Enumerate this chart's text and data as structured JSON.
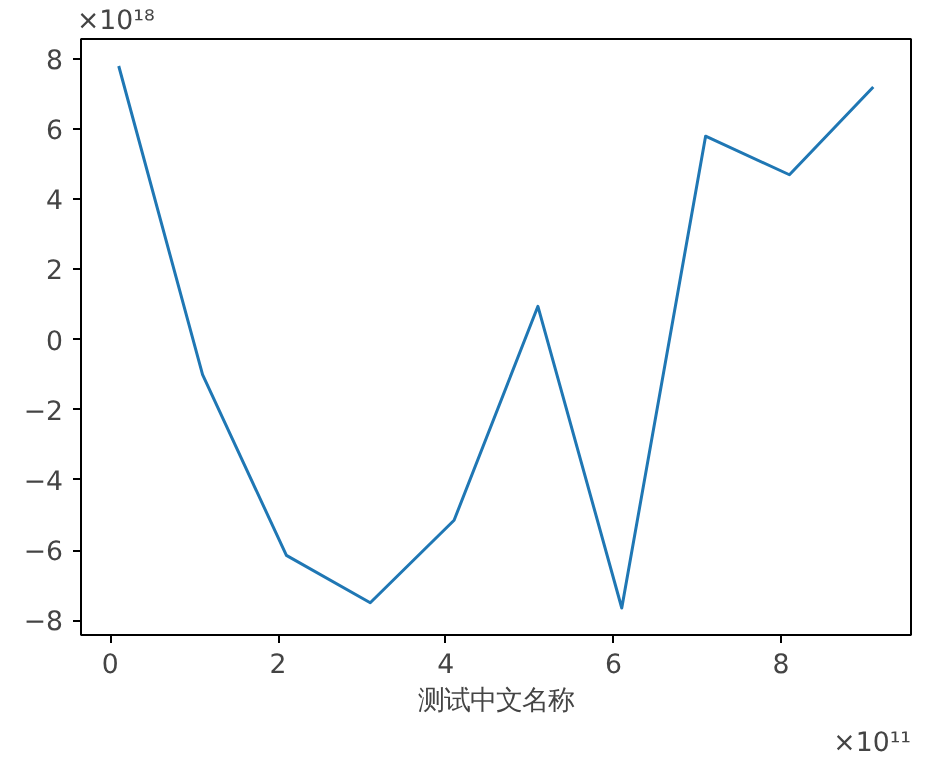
{
  "chart_data": {
    "type": "line",
    "xlabel": "测试中文名称",
    "x": [
      0.1,
      1.1,
      2.1,
      3.1,
      4.1,
      5.1,
      6.1,
      7.1,
      8.1,
      9.1
    ],
    "series": [
      {
        "color": "#1f77b4",
        "values": [
          7.8,
          -1.0,
          -6.15,
          -7.5,
          -5.15,
          0.95,
          -7.65,
          5.8,
          4.7,
          7.2
        ]
      }
    ],
    "xlim": [
      -0.35,
      9.55
    ],
    "ylim": [
      -8.42,
      8.57
    ],
    "xticks": [
      0,
      2,
      4,
      6,
      8
    ],
    "yticks": [
      {
        "value": -8,
        "label": "−8"
      },
      {
        "value": -6,
        "label": "−6"
      },
      {
        "value": -4,
        "label": "−4"
      },
      {
        "value": -2,
        "label": "−2"
      },
      0,
      2,
      4,
      6,
      8
    ],
    "annotations": [
      "×10¹⁸",
      "×10¹¹"
    ],
    "grid": false,
    "marker": "none",
    "line_style": "solid"
  }
}
